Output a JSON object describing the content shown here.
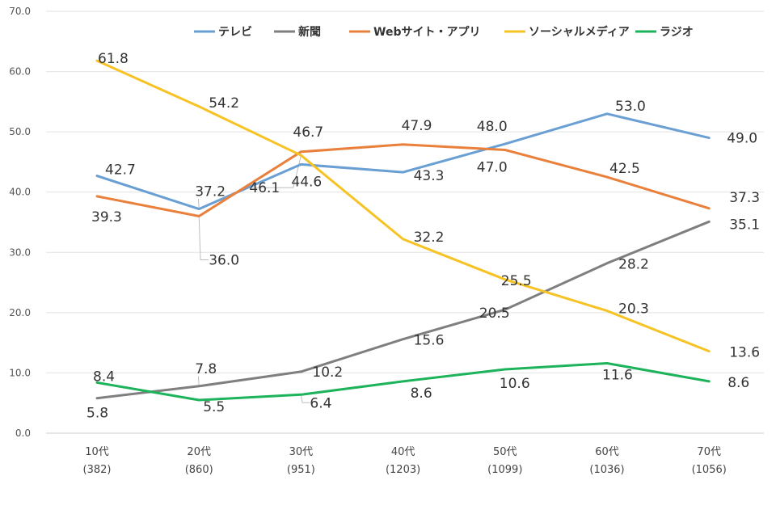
{
  "chart_data": {
    "type": "line",
    "title": "",
    "xlabel": "",
    "ylabel": "",
    "ylim": [
      0,
      70
    ],
    "yticks": [
      "0.0",
      "10.0",
      "20.0",
      "30.0",
      "40.0",
      "50.0",
      "60.0",
      "70.0"
    ],
    "grid": true,
    "legend_position": "top",
    "categories": [
      {
        "label": "10代",
        "n": "(382)"
      },
      {
        "label": "20代",
        "n": "(860)"
      },
      {
        "label": "30代",
        "n": "(951)"
      },
      {
        "label": "40代",
        "n": "(1203)"
      },
      {
        "label": "50代",
        "n": "(1099)"
      },
      {
        "label": "60代",
        "n": "(1036)"
      },
      {
        "label": "70代",
        "n": "(1056)"
      }
    ],
    "series": [
      {
        "name": "テレビ",
        "color": "#6a9fd4",
        "values": [
          42.7,
          37.2,
          44.6,
          43.3,
          48.0,
          53.0,
          49.0
        ]
      },
      {
        "name": "新聞",
        "color": "#7f7f7f",
        "values": [
          5.8,
          7.8,
          10.2,
          15.6,
          20.5,
          28.2,
          35.1
        ]
      },
      {
        "name": "Webサイト・アプリ",
        "color": "#e9803c",
        "values": [
          39.3,
          36.0,
          46.7,
          47.9,
          47.0,
          42.5,
          37.3
        ]
      },
      {
        "name": "ソーシャルメディア",
        "color": "#f7c223",
        "values": [
          61.8,
          54.2,
          46.1,
          32.2,
          25.5,
          20.3,
          13.6
        ]
      },
      {
        "name": "ラジオ",
        "color": "#1db35a",
        "values": [
          8.4,
          5.5,
          6.4,
          8.6,
          10.6,
          11.6,
          8.6
        ]
      }
    ]
  }
}
